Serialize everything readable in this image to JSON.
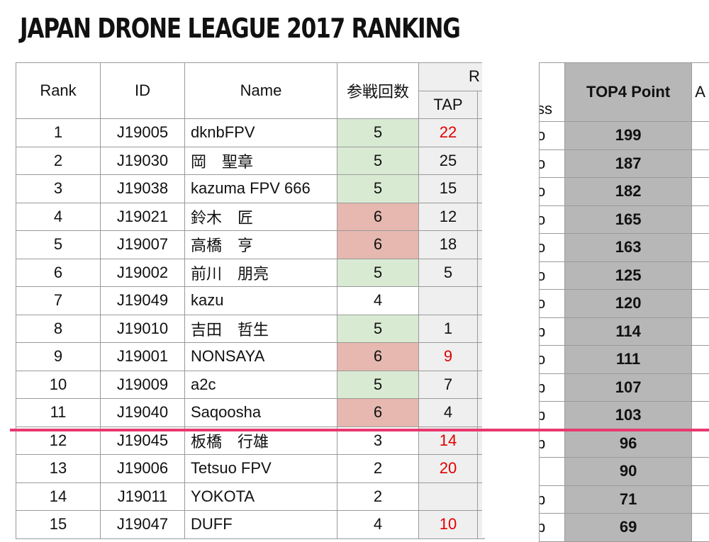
{
  "title": "JAPAN DRONE LEAGUE 2017 RANKING",
  "headers": {
    "rank": "Rank",
    "id": "ID",
    "name": "Name",
    "count": "参戦回数",
    "round_partial": "R",
    "tap": "TAP",
    "frag_col": "ss",
    "top4": "TOP4 Point",
    "a_col": "A"
  },
  "colors": {
    "green_cell": "#d9ead3",
    "pink_cell": "#e6b8af",
    "red_text": "#e00000",
    "top4_bg": "#b7b7b7",
    "cutoff_line": "#e8386f"
  },
  "rows": [
    {
      "rank": "1",
      "id": "J19005",
      "name": "dknbFPV",
      "count": "5",
      "count_color": "green",
      "tap": "22",
      "tap_red": true,
      "frag": "o",
      "top4": "199"
    },
    {
      "rank": "2",
      "id": "J19030",
      "name": "岡　聖章",
      "count": "5",
      "count_color": "green",
      "tap": "25",
      "tap_red": false,
      "frag": "o",
      "top4": "187"
    },
    {
      "rank": "3",
      "id": "J19038",
      "name": "kazuma FPV 666",
      "count": "5",
      "count_color": "green",
      "tap": "15",
      "tap_red": false,
      "frag": "o",
      "top4": "182"
    },
    {
      "rank": "4",
      "id": "J19021",
      "name": "鈴木　匠",
      "count": "6",
      "count_color": "pink",
      "tap": "12",
      "tap_red": false,
      "frag": "o",
      "top4": "165"
    },
    {
      "rank": "5",
      "id": "J19007",
      "name": "高橋　亨",
      "count": "6",
      "count_color": "pink",
      "tap": "18",
      "tap_red": false,
      "frag": "o",
      "top4": "163"
    },
    {
      "rank": "6",
      "id": "J19002",
      "name": "前川　朋亮",
      "count": "5",
      "count_color": "green",
      "tap": "5",
      "tap_red": false,
      "frag": "o",
      "top4": "125"
    },
    {
      "rank": "7",
      "id": "J19049",
      "name": "kazu",
      "count": "4",
      "count_color": "none",
      "tap": "",
      "tap_red": false,
      "frag": "o",
      "top4": "120"
    },
    {
      "rank": "8",
      "id": "J19010",
      "name": "吉田　哲生",
      "count": "5",
      "count_color": "green",
      "tap": "1",
      "tap_red": false,
      "frag": "p",
      "top4": "114"
    },
    {
      "rank": "9",
      "id": "J19001",
      "name": "NONSAYA",
      "count": "6",
      "count_color": "pink",
      "tap": "9",
      "tap_red": true,
      "frag": "o",
      "top4": "111"
    },
    {
      "rank": "10",
      "id": "J19009",
      "name": "a2c",
      "count": "5",
      "count_color": "green",
      "tap": "7",
      "tap_red": false,
      "frag": "p",
      "top4": "107"
    },
    {
      "rank": "11",
      "id": "J19040",
      "name": "Saqoosha",
      "count": "6",
      "count_color": "pink",
      "tap": "4",
      "tap_red": false,
      "frag": "p",
      "top4": "103"
    },
    {
      "rank": "12",
      "id": "J19045",
      "name": "板橋　行雄",
      "count": "3",
      "count_color": "none",
      "tap": "14",
      "tap_red": true,
      "frag": "p",
      "top4": "96"
    },
    {
      "rank": "13",
      "id": "J19006",
      "name": "Tetsuo FPV",
      "count": "2",
      "count_color": "none",
      "tap": "20",
      "tap_red": true,
      "frag": "",
      "top4": "90"
    },
    {
      "rank": "14",
      "id": "J19011",
      "name": "YOKOTA",
      "count": "2",
      "count_color": "none",
      "tap": "",
      "tap_red": false,
      "frag": "p",
      "top4": "71"
    },
    {
      "rank": "15",
      "id": "J19047",
      "name": "DUFF",
      "count": "4",
      "count_color": "none",
      "tap": "10",
      "tap_red": true,
      "frag": "p",
      "top4": "69"
    }
  ]
}
